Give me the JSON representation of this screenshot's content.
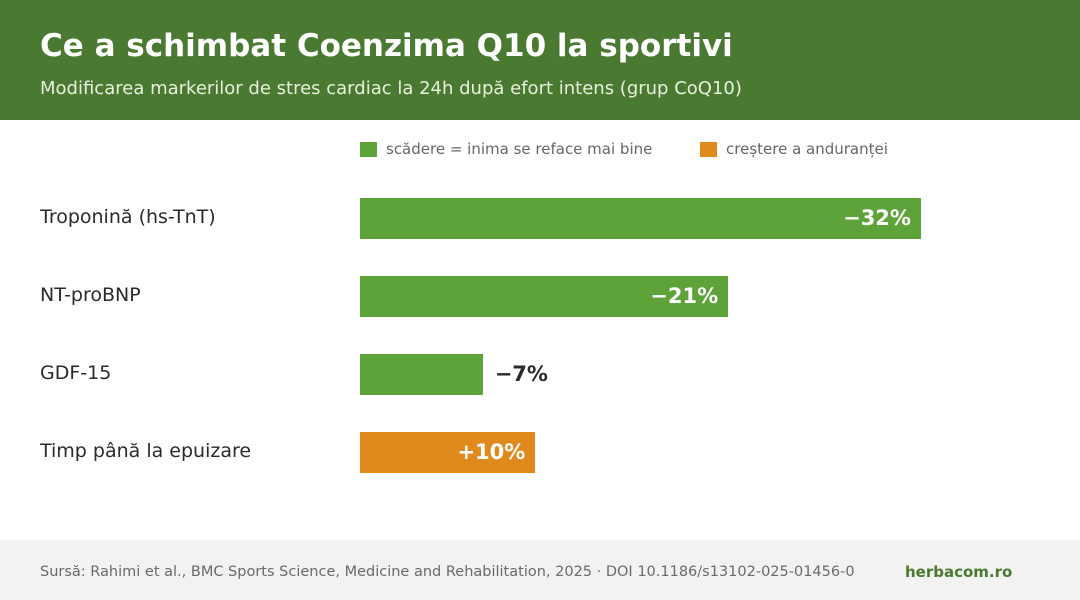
{
  "header": {
    "title": "Ce a schimbat Coenzima Q10 la sportivi",
    "subtitle": "Modificarea markerilor de stres cardiac la 24h după efort intens (grup CoQ10)"
  },
  "colors": {
    "header_bg": "#4a7a31",
    "decrease": "#5ea23a",
    "increase": "#e08a1e"
  },
  "chart_data": {
    "type": "bar",
    "orientation": "horizontal",
    "legend": {
      "placement": "top",
      "entries": [
        {
          "label": "scădere = inima se reface mai bine",
          "color": "#5ea23a"
        },
        {
          "label": "creștere a anduranței",
          "color": "#e08a1e"
        }
      ]
    },
    "categories": [
      "Troponină (hs-TnT)",
      "NT-proBNP",
      "GDF-15",
      "Timp până la epuizare"
    ],
    "values": [
      -32,
      -21,
      -7,
      10
    ],
    "value_labels": [
      "−32%",
      "−21%",
      "−7%",
      "+10%"
    ],
    "kinds": [
      "decrease",
      "decrease",
      "decrease",
      "increase"
    ],
    "unit": "%",
    "grid": false
  },
  "footer": {
    "source": "Sursă: Rahimi et al., BMC Sports Science, Medicine and Rehabilitation, 2025 · DOI 10.1186/s13102-025-01456-0",
    "brand": "herbacom.ro"
  }
}
